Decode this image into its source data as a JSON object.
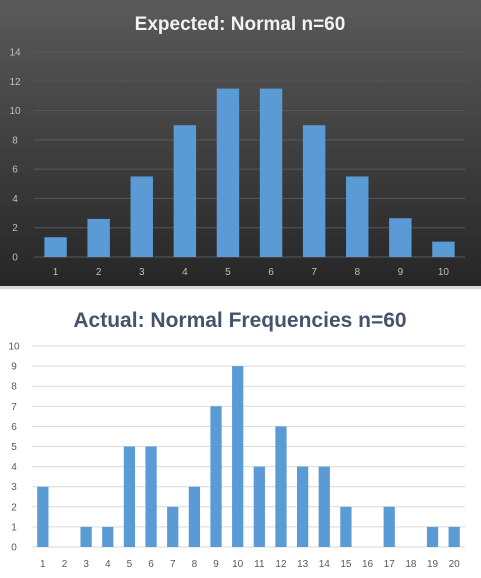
{
  "chart_data": [
    {
      "type": "bar",
      "title": "Expected:  Normal  n=60",
      "categories": [
        "1",
        "2",
        "3",
        "4",
        "5",
        "6",
        "7",
        "8",
        "9",
        "10"
      ],
      "values": [
        1.35,
        2.6,
        5.5,
        9.0,
        11.5,
        11.5,
        9.0,
        5.5,
        2.65,
        1.05
      ],
      "ylim": [
        0,
        14
      ],
      "yticks": [
        "0",
        "2",
        "4",
        "6",
        "8",
        "10",
        "12",
        "14"
      ],
      "grid": true,
      "colors": {
        "background_top": "#5a5a5a",
        "background_bottom": "#262626",
        "bar": "#5b9bd5",
        "title": "#f2f2f2",
        "grid": "#595959",
        "tick": "#bfbfbf"
      }
    },
    {
      "type": "bar",
      "title": "Actual: Normal Frequencies n=60",
      "categories": [
        "1",
        "2",
        "3",
        "4",
        "5",
        "6",
        "7",
        "8",
        "9",
        "10",
        "11",
        "12",
        "13",
        "14",
        "15",
        "16",
        "17",
        "18",
        "19",
        "20"
      ],
      "values": [
        3,
        0,
        1,
        1,
        5,
        5,
        2,
        3,
        7,
        9,
        4,
        6,
        4,
        4,
        2,
        0,
        2,
        0,
        1,
        1
      ],
      "ylim": [
        0,
        10
      ],
      "yticks": [
        "0",
        "1",
        "2",
        "3",
        "4",
        "5",
        "6",
        "7",
        "8",
        "9",
        "10"
      ],
      "grid": true,
      "colors": {
        "background": "#ffffff",
        "bar": "#5b9bd5",
        "title": "#44546a",
        "grid": "#d9d9d9",
        "tick": "#595959"
      }
    }
  ]
}
